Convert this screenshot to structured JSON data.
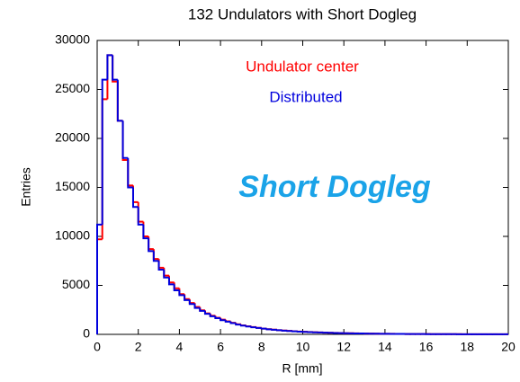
{
  "chart_data": {
    "type": "histogram",
    "title": "132 Undulators with Short Dogleg",
    "xlabel": "R [mm]",
    "ylabel": "Entries",
    "annotation": "Short Dogleg",
    "bins": [
      0,
      0.25,
      0.5,
      0.75,
      1,
      1.25,
      1.5,
      1.75,
      2,
      2.25,
      2.5,
      2.75,
      3,
      3.25,
      3.5,
      3.75,
      4,
      4.25,
      4.5,
      4.75,
      5,
      5.25,
      5.5,
      5.75,
      6,
      6.25,
      6.5,
      6.75,
      7,
      7.25,
      7.5,
      7.75,
      8,
      8.25,
      8.5,
      8.75,
      9,
      9.25,
      9.5,
      9.75,
      10,
      10.25,
      10.5,
      10.75,
      11,
      11.25,
      11.5,
      11.75,
      12,
      12.25,
      12.5,
      12.75,
      13,
      13.25,
      13.5,
      13.75,
      14,
      14.25,
      14.5,
      14.75,
      15,
      15.25,
      15.5,
      15.75,
      16,
      16.25,
      16.5,
      16.75,
      17,
      17.25,
      17.5,
      17.75,
      18,
      18.25,
      18.5,
      18.75,
      19,
      19.25,
      19.5,
      19.75,
      20
    ],
    "series": [
      {
        "name": "Undulator center",
        "color": "#ff0000",
        "values": [
          9700,
          24000,
          28500,
          25800,
          21800,
          17800,
          15200,
          13500,
          11500,
          10000,
          8700,
          7700,
          6800,
          6000,
          5300,
          4700,
          4100,
          3600,
          3200,
          2800,
          2450,
          2150,
          1900,
          1700,
          1500,
          1330,
          1180,
          1030,
          920,
          820,
          740,
          660,
          590,
          530,
          480,
          430,
          390,
          350,
          320,
          290,
          260,
          240,
          215,
          195,
          175,
          160,
          145,
          130,
          120,
          110,
          100,
          90,
          82,
          75,
          68,
          62,
          57,
          52,
          48,
          44,
          40,
          37,
          34,
          31,
          29,
          27,
          25,
          23,
          21,
          19,
          18,
          17,
          16,
          15,
          14,
          13,
          12,
          11,
          10,
          10
        ]
      },
      {
        "name": "Distributed",
        "color": "#0000dd",
        "values": [
          11200,
          26000,
          28500,
          26000,
          21800,
          18000,
          15000,
          13000,
          11200,
          9800,
          8500,
          7500,
          6600,
          5800,
          5100,
          4500,
          4000,
          3500,
          3100,
          2700,
          2400,
          2100,
          1850,
          1650,
          1450,
          1300,
          1150,
          1000,
          900,
          800,
          720,
          650,
          580,
          520,
          470,
          420,
          380,
          340,
          310,
          280,
          250,
          230,
          210,
          190,
          170,
          155,
          140,
          125,
          115,
          105,
          95,
          88,
          80,
          72,
          66,
          60,
          55,
          50,
          46,
          42,
          38,
          35,
          32,
          30,
          28,
          26,
          24,
          22,
          20,
          18,
          17,
          16,
          15,
          14,
          13,
          12,
          11,
          10,
          10,
          9
        ]
      }
    ],
    "xlim": [
      0,
      20
    ],
    "ylim": [
      0,
      30000
    ],
    "xticks": [
      0,
      2,
      4,
      6,
      8,
      10,
      12,
      14,
      16,
      18,
      20
    ],
    "yticks": [
      0,
      5000,
      10000,
      15000,
      20000,
      25000,
      30000
    ]
  }
}
